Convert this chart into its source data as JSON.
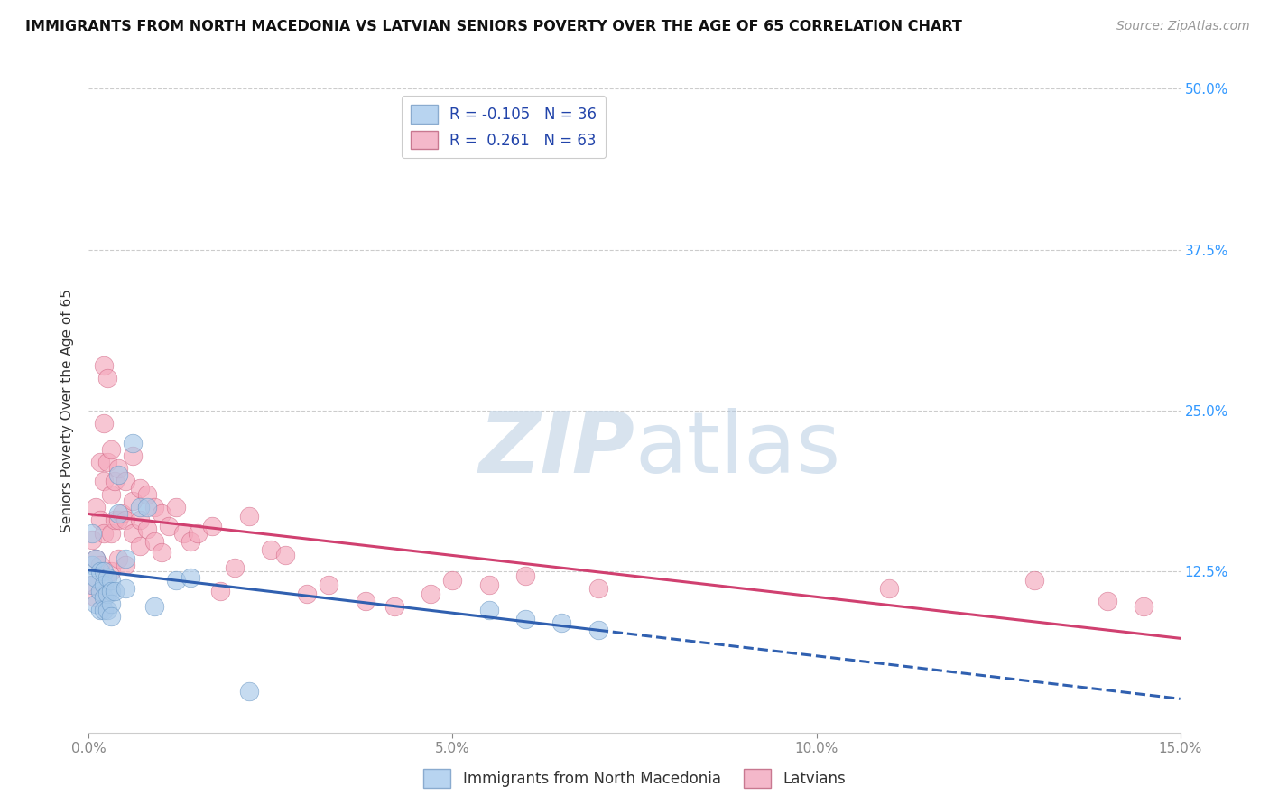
{
  "title": "IMMIGRANTS FROM NORTH MACEDONIA VS LATVIAN SENIORS POVERTY OVER THE AGE OF 65 CORRELATION CHART",
  "source": "Source: ZipAtlas.com",
  "ylabel": "Seniors Poverty Over the Age of 65",
  "xlim": [
    0.0,
    0.15
  ],
  "ylim": [
    0.0,
    0.5
  ],
  "xticks": [
    0.0,
    0.05,
    0.1,
    0.15
  ],
  "yticks": [
    0.0,
    0.125,
    0.25,
    0.375,
    0.5
  ],
  "xtick_labels": [
    "0.0%",
    "5.0%",
    "10.0%",
    "15.0%"
  ],
  "ytick_labels_right": [
    "",
    "12.5%",
    "25.0%",
    "37.5%",
    "50.0%"
  ],
  "series1_name": "Immigrants from North Macedonia",
  "series2_name": "Latvians",
  "series1_color": "#a8c8e8",
  "series2_color": "#f4a8bc",
  "series1_edge_color": "#6090c0",
  "series2_edge_color": "#d06080",
  "trendline1_color": "#3060b0",
  "trendline2_color": "#d04070",
  "background_color": "#ffffff",
  "grid_color": "#cccccc",
  "watermark_zip": "ZIP",
  "watermark_atlas": "atlas",
  "series1_R": -0.105,
  "series1_N": 36,
  "series2_R": 0.261,
  "series2_N": 63,
  "series1_x": [
    0.0005,
    0.0005,
    0.0005,
    0.001,
    0.001,
    0.001,
    0.0015,
    0.0015,
    0.0015,
    0.002,
    0.002,
    0.002,
    0.002,
    0.0025,
    0.0025,
    0.0025,
    0.003,
    0.003,
    0.003,
    0.003,
    0.0035,
    0.004,
    0.004,
    0.005,
    0.005,
    0.006,
    0.007,
    0.008,
    0.009,
    0.012,
    0.014,
    0.022,
    0.055,
    0.06,
    0.065,
    0.07
  ],
  "series1_y": [
    0.155,
    0.13,
    0.115,
    0.135,
    0.12,
    0.1,
    0.125,
    0.11,
    0.095,
    0.125,
    0.115,
    0.105,
    0.095,
    0.12,
    0.108,
    0.095,
    0.118,
    0.11,
    0.1,
    0.09,
    0.11,
    0.2,
    0.17,
    0.135,
    0.112,
    0.225,
    0.175,
    0.175,
    0.098,
    0.118,
    0.12,
    0.032,
    0.095,
    0.088,
    0.085,
    0.08
  ],
  "series2_x": [
    0.0005,
    0.0005,
    0.001,
    0.001,
    0.001,
    0.0015,
    0.0015,
    0.0015,
    0.002,
    0.002,
    0.002,
    0.002,
    0.0025,
    0.0025,
    0.003,
    0.003,
    0.003,
    0.003,
    0.0035,
    0.0035,
    0.004,
    0.004,
    0.004,
    0.0045,
    0.005,
    0.005,
    0.005,
    0.006,
    0.006,
    0.006,
    0.007,
    0.007,
    0.007,
    0.008,
    0.008,
    0.009,
    0.009,
    0.01,
    0.01,
    0.011,
    0.012,
    0.013,
    0.014,
    0.015,
    0.017,
    0.018,
    0.02,
    0.022,
    0.025,
    0.027,
    0.03,
    0.033,
    0.038,
    0.042,
    0.047,
    0.05,
    0.055,
    0.06,
    0.07,
    0.11,
    0.13,
    0.14,
    0.145
  ],
  "series2_y": [
    0.15,
    0.115,
    0.175,
    0.135,
    0.105,
    0.21,
    0.165,
    0.13,
    0.285,
    0.24,
    0.195,
    0.155,
    0.275,
    0.21,
    0.22,
    0.185,
    0.155,
    0.125,
    0.195,
    0.165,
    0.205,
    0.165,
    0.135,
    0.17,
    0.195,
    0.165,
    0.13,
    0.215,
    0.18,
    0.155,
    0.19,
    0.165,
    0.145,
    0.185,
    0.158,
    0.175,
    0.148,
    0.17,
    0.14,
    0.16,
    0.175,
    0.155,
    0.148,
    0.155,
    0.16,
    0.11,
    0.128,
    0.168,
    0.142,
    0.138,
    0.108,
    0.115,
    0.102,
    0.098,
    0.108,
    0.118,
    0.115,
    0.122,
    0.112,
    0.112,
    0.118,
    0.102,
    0.098
  ]
}
